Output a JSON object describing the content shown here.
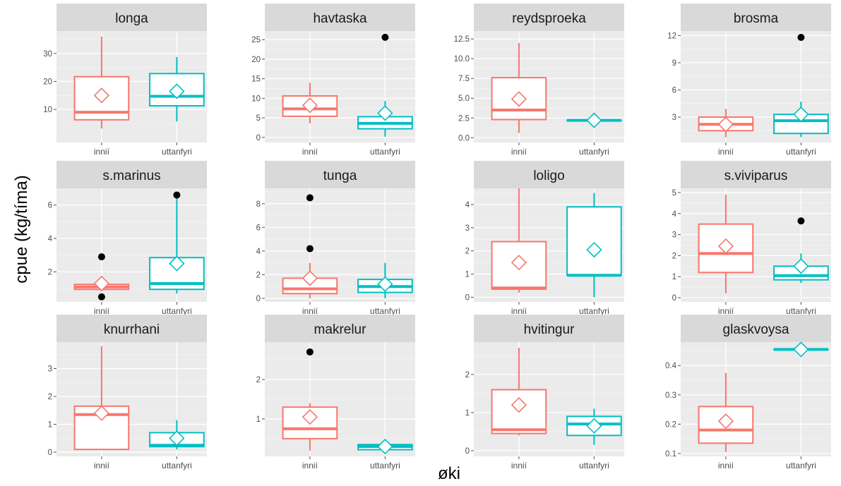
{
  "chart_data": {
    "type": "boxplot",
    "xlabel": "øki",
    "ylabel": "cpue (kg/tíma)",
    "categories": [
      "innií",
      "uttanfyri"
    ],
    "colors": {
      "innií": "#F8766D",
      "uttanfyri": "#00BFC4"
    },
    "facet_layout": "3 rows x 4 columns, free y-scales",
    "facets": [
      {
        "title": "longa",
        "ylim": [
          -1.8,
          38
        ],
        "yticks": [
          10,
          20,
          30
        ],
        "boxes": [
          {
            "category": "innií",
            "min": 3.2,
            "q1": 6.3,
            "median": 9.0,
            "q3": 21.7,
            "max": 36.0,
            "mean": 15.0,
            "outliers": []
          },
          {
            "category": "uttanfyri",
            "min": 5.7,
            "q1": 11.3,
            "median": 14.7,
            "q3": 22.8,
            "max": 28.7,
            "mean": 16.5,
            "outliers": []
          }
        ]
      },
      {
        "title": "havtaska",
        "ylim": [
          -1.3,
          27.2
        ],
        "yticks": [
          0,
          5,
          10,
          15,
          20,
          25
        ],
        "boxes": [
          {
            "category": "innií",
            "min": 3.6,
            "q1": 5.4,
            "median": 7.3,
            "q3": 10.6,
            "max": 14.0,
            "mean": 8.2,
            "outliers": []
          },
          {
            "category": "uttanfyri",
            "min": 0.2,
            "q1": 2.2,
            "median": 3.6,
            "q3": 5.3,
            "max": 9.3,
            "mean": 6.2,
            "outliers": [
              25.6
            ]
          }
        ]
      },
      {
        "title": "reydsproeka",
        "ylim": [
          -0.6,
          13.5
        ],
        "yticks": [
          0.0,
          2.5,
          5.0,
          7.5,
          10.0,
          12.5
        ],
        "boxes": [
          {
            "category": "innií",
            "min": 0.6,
            "q1": 2.3,
            "median": 3.5,
            "q3": 7.6,
            "max": 12.0,
            "mean": 4.9,
            "outliers": []
          },
          {
            "category": "uttanfyri",
            "min": 2.2,
            "q1": 2.2,
            "median": 2.2,
            "q3": 2.2,
            "max": 2.2,
            "mean": 2.2,
            "outliers": []
          }
        ]
      },
      {
        "title": "brosma",
        "ylim": [
          0.2,
          12.5
        ],
        "yticks": [
          3,
          6,
          9,
          12
        ],
        "boxes": [
          {
            "category": "innií",
            "min": 0.8,
            "q1": 1.5,
            "median": 2.2,
            "q3": 3.0,
            "max": 3.9,
            "mean": 2.2,
            "outliers": []
          },
          {
            "category": "uttanfyri",
            "min": 0.8,
            "q1": 1.2,
            "median": 2.6,
            "q3": 3.3,
            "max": 4.7,
            "mean": 3.3,
            "outliers": [
              11.8
            ]
          }
        ]
      },
      {
        "title": "s.marinus",
        "ylim": [
          0.2,
          7.0
        ],
        "yticks": [
          2,
          4,
          6
        ],
        "boxes": [
          {
            "category": "innií",
            "min": 0.9,
            "q1": 0.95,
            "median": 1.1,
            "q3": 1.25,
            "max": 1.4,
            "mean": 1.3,
            "outliers": [
              2.9,
              0.5
            ]
          },
          {
            "category": "uttanfyri",
            "min": 0.7,
            "q1": 0.95,
            "median": 1.3,
            "q3": 2.85,
            "max": 6.6,
            "mean": 2.5,
            "outliers": [
              6.6
            ]
          }
        ]
      },
      {
        "title": "tunga",
        "ylim": [
          -0.3,
          9.3
        ],
        "yticks": [
          0,
          2,
          4,
          6,
          8
        ],
        "boxes": [
          {
            "category": "innií",
            "min": 0.0,
            "q1": 0.4,
            "median": 0.8,
            "q3": 1.7,
            "max": 3.0,
            "mean": 1.7,
            "outliers": [
              4.2,
              8.5
            ]
          },
          {
            "category": "uttanfyri",
            "min": 0.0,
            "q1": 0.5,
            "median": 1.0,
            "q3": 1.6,
            "max": 3.0,
            "mean": 1.2,
            "outliers": []
          }
        ]
      },
      {
        "title": "loligo",
        "ylim": [
          -0.2,
          4.7
        ],
        "yticks": [
          0,
          1,
          2,
          3,
          4
        ],
        "boxes": [
          {
            "category": "innií",
            "min": 0.2,
            "q1": 0.35,
            "median": 0.4,
            "q3": 2.4,
            "max": 4.7,
            "mean": 1.5,
            "outliers": []
          },
          {
            "category": "uttanfyri",
            "min": 0.0,
            "q1": 0.95,
            "median": 0.95,
            "q3": 3.9,
            "max": 4.5,
            "mean": 2.05,
            "outliers": []
          }
        ]
      },
      {
        "title": "s.viviparus",
        "ylim": [
          -0.2,
          5.2
        ],
        "yticks": [
          0,
          1,
          2,
          3,
          4,
          5
        ],
        "boxes": [
          {
            "category": "innií",
            "min": 0.2,
            "q1": 1.2,
            "median": 2.1,
            "q3": 3.5,
            "max": 4.9,
            "mean": 2.45,
            "outliers": []
          },
          {
            "category": "uttanfyri",
            "min": 0.7,
            "q1": 0.85,
            "median": 1.05,
            "q3": 1.5,
            "max": 2.1,
            "mean": 1.5,
            "outliers": [
              3.65
            ]
          }
        ]
      },
      {
        "title": "knurrhani",
        "ylim": [
          -0.15,
          3.95
        ],
        "yticks": [
          0,
          1,
          2,
          3
        ],
        "boxes": [
          {
            "category": "innií",
            "min": 0.1,
            "q1": 0.1,
            "median": 1.35,
            "q3": 1.65,
            "max": 3.8,
            "mean": 1.4,
            "outliers": []
          },
          {
            "category": "uttanfyri",
            "min": 0.1,
            "q1": 0.2,
            "median": 0.25,
            "q3": 0.7,
            "max": 1.15,
            "mean": 0.5,
            "outliers": []
          }
        ]
      },
      {
        "title": "makrelur",
        "ylim": [
          0.05,
          2.95
        ],
        "yticks": [
          1,
          2
        ],
        "boxes": [
          {
            "category": "innií",
            "min": 0.2,
            "q1": 0.5,
            "median": 0.75,
            "q3": 1.3,
            "max": 1.4,
            "mean": 1.05,
            "outliers": [
              2.7
            ]
          },
          {
            "category": "uttanfyri",
            "min": 0.2,
            "q1": 0.22,
            "median": 0.3,
            "q3": 0.35,
            "max": 0.4,
            "mean": 0.3,
            "outliers": []
          }
        ]
      },
      {
        "title": "hvitingur",
        "ylim": [
          -0.15,
          2.85
        ],
        "yticks": [
          0,
          1,
          2
        ],
        "boxes": [
          {
            "category": "innií",
            "min": 0.4,
            "q1": 0.45,
            "median": 0.55,
            "q3": 1.6,
            "max": 2.7,
            "mean": 1.2,
            "outliers": []
          },
          {
            "category": "uttanfyri",
            "min": 0.15,
            "q1": 0.4,
            "median": 0.7,
            "q3": 0.9,
            "max": 1.1,
            "mean": 0.65,
            "outliers": []
          }
        ]
      },
      {
        "title": "glaskvoysa",
        "ylim": [
          0.09,
          0.48
        ],
        "yticks": [
          0.1,
          0.2,
          0.3,
          0.4
        ],
        "boxes": [
          {
            "category": "innií",
            "min": 0.105,
            "q1": 0.135,
            "median": 0.18,
            "q3": 0.26,
            "max": 0.375,
            "mean": 0.21,
            "outliers": []
          },
          {
            "category": "uttanfyri",
            "min": 0.455,
            "q1": 0.455,
            "median": 0.455,
            "q3": 0.455,
            "max": 0.455,
            "mean": 0.455,
            "outliers": []
          }
        ]
      }
    ]
  }
}
